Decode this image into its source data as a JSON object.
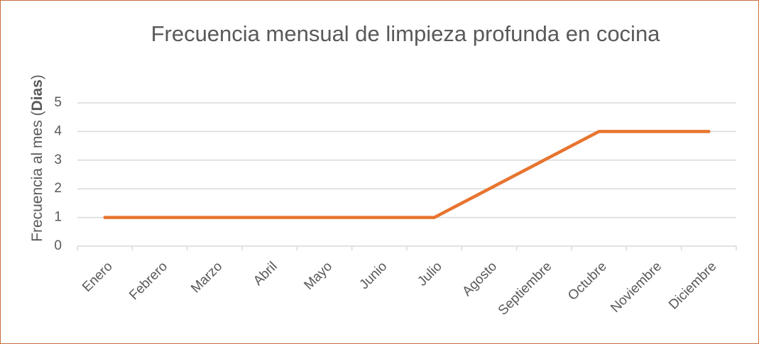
{
  "chart_data": {
    "type": "line",
    "title": "Frecuencia mensual de limpieza profunda en cocina",
    "y_label_parts": [
      "Frecuencia al mes (",
      "Dias",
      ")"
    ],
    "categories": [
      "Enero",
      "Febrero",
      "Marzo",
      "Abril",
      "Mayo",
      "Junio",
      "Julio",
      "Agosto",
      "Septiembre",
      "Octubre",
      "Noviembre",
      "Diciembre"
    ],
    "series": [
      {
        "color": "#e8742f",
        "values": [
          1,
          1,
          1,
          1,
          1,
          1,
          1,
          2,
          3,
          4,
          4,
          4
        ]
      }
    ],
    "ylim": [
      0,
      5
    ],
    "yticks": [
      0,
      1,
      2,
      3,
      4,
      5
    ],
    "grid": true
  }
}
